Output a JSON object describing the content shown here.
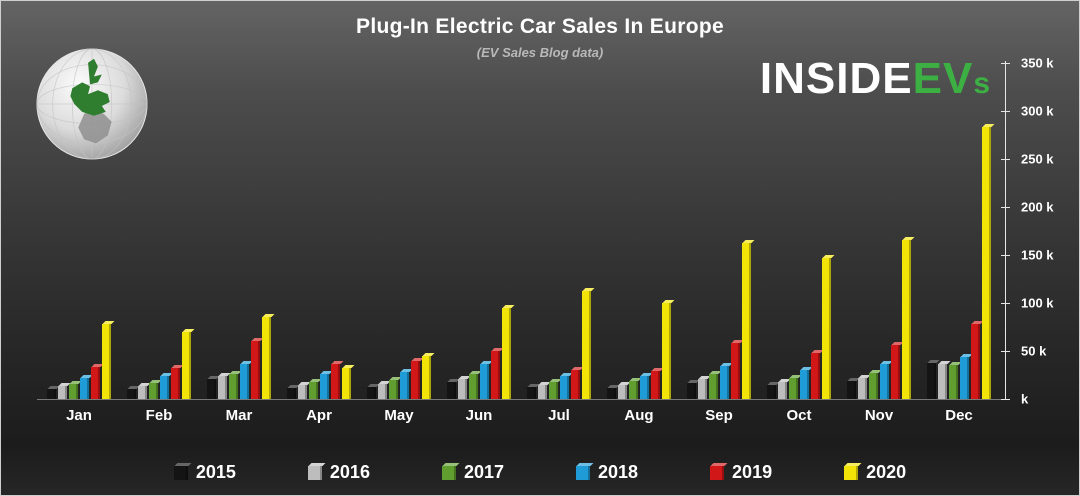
{
  "header": {
    "title": "Plug-In Electric Car Sales In Europe",
    "subtitle": "(EV Sales Blog data)"
  },
  "logo": {
    "part1": "INSIDE",
    "part2": "EV",
    "part3": "s",
    "accent_color": "#3cb043"
  },
  "chart_data": {
    "type": "bar",
    "title": "Plug-In Electric Car Sales In Europe",
    "subtitle": "(EV Sales Blog data)",
    "unit": "k",
    "grid": false,
    "legend_position": "bottom",
    "ylim": [
      0,
      350
    ],
    "ytick_labels": [
      "350 k",
      "300 k",
      "250 k",
      "200 k",
      "150 k",
      "100 k",
      "50 k",
      "k"
    ],
    "categories": [
      "Jan",
      "Feb",
      "Mar",
      "Apr",
      "May",
      "Jun",
      "Jul",
      "Aug",
      "Sep",
      "Oct",
      "Nov",
      "Dec"
    ],
    "series": [
      {
        "name": "2015",
        "color": "#141414",
        "values": [
          10,
          10,
          21,
          11,
          12,
          18,
          12,
          11,
          17,
          15,
          19,
          37
        ]
      },
      {
        "name": "2016",
        "color": "#bdbdbd",
        "values": [
          14,
          14,
          24,
          15,
          16,
          21,
          15,
          15,
          21,
          18,
          22,
          36
        ]
      },
      {
        "name": "2017",
        "color": "#5f9e2f",
        "values": [
          16,
          17,
          26,
          18,
          20,
          26,
          18,
          19,
          26,
          22,
          27,
          35
        ]
      },
      {
        "name": "2018",
        "color": "#1f9cd8",
        "values": [
          22,
          24,
          36,
          26,
          28,
          36,
          24,
          24,
          34,
          30,
          36,
          44
        ]
      },
      {
        "name": "2019",
        "color": "#d11717",
        "values": [
          33,
          32,
          60,
          36,
          40,
          50,
          30,
          29,
          58,
          48,
          56,
          78
        ]
      },
      {
        "name": "2020",
        "color": "#f3e408",
        "values": [
          78,
          70,
          85,
          32,
          45,
          95,
          112,
          100,
          163,
          147,
          166,
          283
        ]
      }
    ]
  }
}
